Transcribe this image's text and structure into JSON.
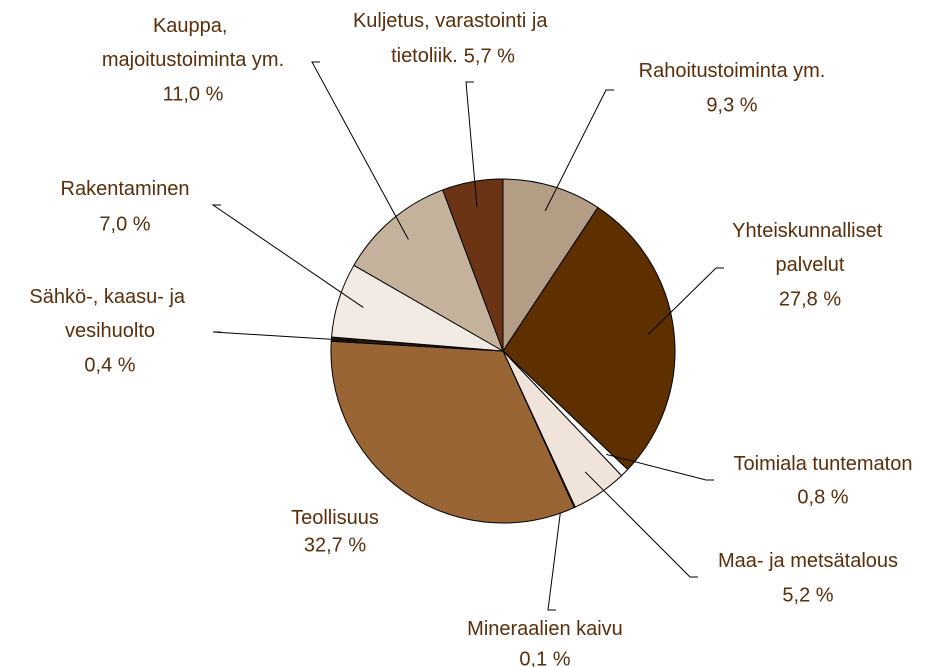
{
  "chart_data": {
    "type": "pie",
    "categories": [
      "Rahoitustoiminta ym.",
      "Yhteiskunnalliset palvelut",
      "Toimiala tuntematon",
      "Maa- ja metsätalous",
      "Mineraalien kaivu",
      "Teollisuus",
      "Sähkö-, kaasu- ja vesihuolto",
      "Rakentaminen",
      "Kauppa, majoitustoiminta ym.",
      "Kuljetus, varastointi ja tietoliik."
    ],
    "values": [
      9.3,
      27.8,
      0.8,
      5.2,
      0.1,
      32.7,
      0.4,
      7.0,
      11.0,
      5.7
    ],
    "value_labels": [
      "9,3 %",
      "27,8 %",
      "0,8 %",
      "5,2 %",
      "0,1 %",
      "32,7 %",
      "0,4 %",
      "7,0 %",
      "11,0 %",
      "5,7 %"
    ],
    "colors": [
      "#b39e85",
      "#5e3000",
      "#ffffff",
      "#f0e4da",
      "#e8dcd0",
      "#9a6535",
      "#2a1a0a",
      "#f3ebe3",
      "#c5b29c",
      "#6b3414"
    ]
  }
}
